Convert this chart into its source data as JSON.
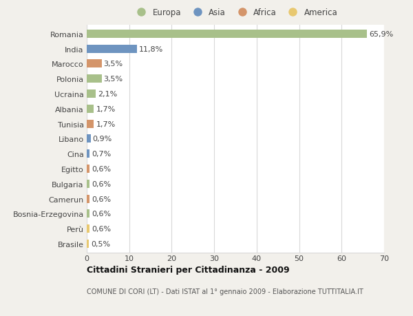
{
  "countries": [
    "Romania",
    "India",
    "Marocco",
    "Polonia",
    "Ucraina",
    "Albania",
    "Tunisia",
    "Libano",
    "Cina",
    "Egitto",
    "Bulgaria",
    "Camerun",
    "Bosnia-Erzegovina",
    "Perù",
    "Brasile"
  ],
  "values": [
    65.9,
    11.8,
    3.5,
    3.5,
    2.1,
    1.7,
    1.7,
    0.9,
    0.7,
    0.6,
    0.6,
    0.6,
    0.6,
    0.6,
    0.5
  ],
  "labels": [
    "65,9%",
    "11,8%",
    "3,5%",
    "3,5%",
    "2,1%",
    "1,7%",
    "1,7%",
    "0,9%",
    "0,7%",
    "0,6%",
    "0,6%",
    "0,6%",
    "0,6%",
    "0,6%",
    "0,5%"
  ],
  "continents": [
    "Europa",
    "Asia",
    "Africa",
    "Europa",
    "Europa",
    "Europa",
    "Africa",
    "Asia",
    "Asia",
    "Africa",
    "Europa",
    "Africa",
    "Europa",
    "America",
    "America"
  ],
  "continent_colors": {
    "Europa": "#a8c08a",
    "Asia": "#6e94c0",
    "Africa": "#d4956a",
    "America": "#e8c870"
  },
  "legend_order": [
    "Europa",
    "Asia",
    "Africa",
    "America"
  ],
  "title": "Cittadini Stranieri per Cittadinanza - 2009",
  "subtitle": "COMUNE DI CORI (LT) - Dati ISTAT al 1° gennaio 2009 - Elaborazione TUTTITALIA.IT",
  "xlim": [
    0,
    70
  ],
  "xticks": [
    0,
    10,
    20,
    30,
    40,
    50,
    60,
    70
  ],
  "background_color": "#f2f0eb",
  "plot_background": "#ffffff",
  "grid_color": "#d8d8d8",
  "bar_height": 0.55,
  "label_fontsize": 8,
  "ytick_fontsize": 8,
  "xtick_fontsize": 8
}
